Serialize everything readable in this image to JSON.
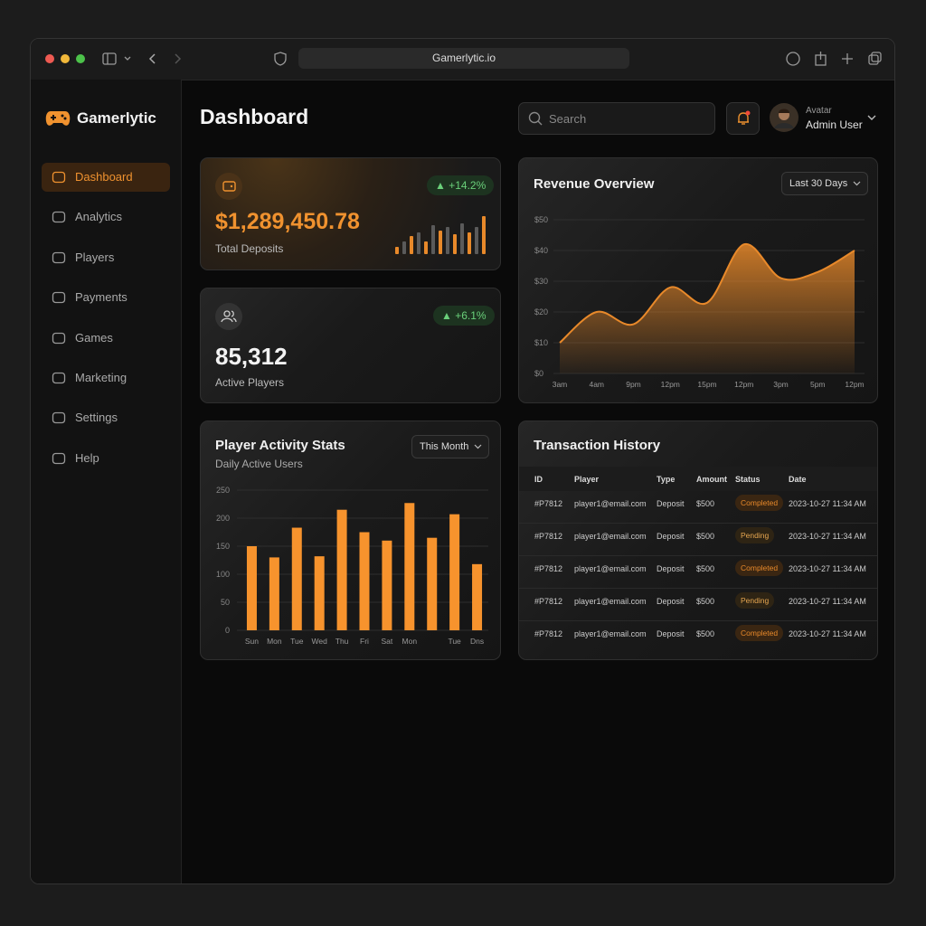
{
  "browser": {
    "url": "Gamerlytic.io"
  },
  "sidebar": {
    "brand": "Gamerlytic",
    "nav": [
      "Dashboard",
      "Analytics",
      "Players",
      "Payments",
      "Games",
      "Marketing",
      "Settings",
      "Help"
    ]
  },
  "header": {
    "title": "Dashboard",
    "search_placeholder": "Search",
    "user_caption": "Avatar",
    "user_name": "Admin User"
  },
  "stats": [
    {
      "change": "+14.2%",
      "value": "$1,289,450.78",
      "label": "Total Deposits",
      "sparkline": [
        8,
        14,
        20,
        24,
        14,
        32,
        26,
        30,
        22,
        34,
        24,
        30,
        42
      ],
      "sparkline_color": "#e8892a"
    },
    {
      "change": "+6.1%",
      "value": "85,312",
      "label": "Active Players"
    }
  ],
  "chart_data": [
    {
      "type": "area",
      "title": "Revenue Overview",
      "filter": "Last 30 Days",
      "categories": [
        "3am",
        "4am",
        "9pm",
        "12pm",
        "15pm",
        "12pm",
        "3pm",
        "5pm",
        "12pm"
      ],
      "values": [
        10,
        20,
        16,
        28,
        23,
        42,
        31,
        33,
        40
      ],
      "color": "#e8892a",
      "ylim": [
        0,
        50
      ],
      "yticks": [
        {
          "value": 0,
          "label": "$0"
        },
        {
          "value": 10,
          "label": "$10"
        },
        {
          "value": 20,
          "label": "$20"
        },
        {
          "value": 30,
          "label": "$30"
        },
        {
          "value": 40,
          "label": "$40"
        },
        {
          "value": 50,
          "label": "$50"
        }
      ],
      "grid": true
    },
    {
      "type": "bar",
      "title": "Player Activity Stats",
      "subtitle": "Daily Active Users",
      "filter": "This Month",
      "categories": [
        "Sun",
        "Mon",
        "Tue",
        "Wed",
        "Thu",
        "Fri",
        "Sat",
        "Mon",
        null,
        "Tue",
        "Dns"
      ],
      "values": [
        150,
        130,
        183,
        132,
        215,
        175,
        160,
        227,
        165,
        207,
        118
      ],
      "color": "#f7932d",
      "ylim": [
        0,
        250
      ],
      "yticks": [
        0,
        50,
        100,
        150,
        200,
        250
      ],
      "grid": true
    }
  ],
  "table": {
    "title": "Transaction History",
    "columns": [
      "ID",
      "Player",
      "Type",
      "Amount",
      "Status",
      "Date"
    ],
    "rows": [
      [
        "#P7812",
        "player1@email.com",
        "Deposit",
        "$500",
        "Completed",
        "2023-10-27 11:34 AM"
      ],
      [
        "#P7812",
        "player1@email.com",
        "Deposit",
        "$500",
        "Pending",
        "2023-10-27 11:34 AM"
      ],
      [
        "#P7812",
        "player1@email.com",
        "Deposit",
        "$500",
        "Completed",
        "2023-10-27 11:34 AM"
      ],
      [
        "#P7812",
        "player1@email.com",
        "Deposit",
        "$500",
        "Pending",
        "2023-10-27 11:34 AM"
      ],
      [
        "#P7812",
        "player1@email.com",
        "Deposit",
        "$500",
        "Completed",
        "2023-10-27 11:34 AM"
      ]
    ]
  }
}
